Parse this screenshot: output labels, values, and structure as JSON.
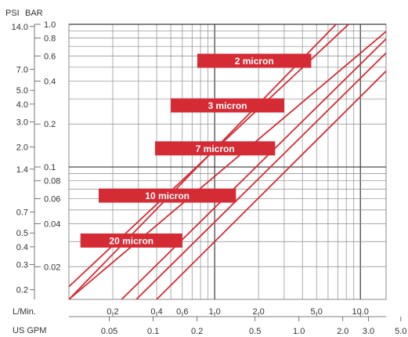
{
  "chart_data": {
    "type": "line",
    "title": "",
    "x_scale": "log",
    "y_scale": "log",
    "x_range_lpm": [
      0.1,
      15.0
    ],
    "y_range_bar": [
      0.0118,
      1.0
    ],
    "grid": true,
    "colors": {
      "series": "#d52b35",
      "label_bg": "#d52b35",
      "label_text": "#ffffff",
      "grid": "#8a8a8a",
      "text": "#333333"
    },
    "units": {
      "psi": "PSI",
      "bar": "BAR",
      "lpm": "L/Min.",
      "gpm": "US GPM"
    },
    "psi_ticks": [
      {
        "label": "14.0",
        "value": 14.0
      },
      {
        "label": "7.0",
        "value": 7.0
      },
      {
        "label": "5.0",
        "value": 5.0
      },
      {
        "label": "4.0",
        "value": 4.0
      },
      {
        "label": "3.0",
        "value": 3.0
      },
      {
        "label": "2.0",
        "value": 2.0
      },
      {
        "label": "1.4",
        "value": 1.4
      },
      {
        "label": "0.7",
        "value": 0.7
      },
      {
        "label": "0.5",
        "value": 0.5
      },
      {
        "label": "0.4",
        "value": 0.4
      },
      {
        "label": "0.3",
        "value": 0.3
      },
      {
        "label": "0.2",
        "value": 0.2
      }
    ],
    "bar_ticks": [
      {
        "label": "1.0",
        "value": 1.0
      },
      {
        "label": "0.8",
        "value": 0.8
      },
      {
        "label": "0.6",
        "value": 0.6
      },
      {
        "label": "0.4",
        "value": 0.4
      },
      {
        "label": "0.2",
        "value": 0.2
      },
      {
        "label": "0.1",
        "value": 0.1
      },
      {
        "label": "0.08",
        "value": 0.08
      },
      {
        "label": "0.06",
        "value": 0.06
      },
      {
        "label": "0.04",
        "value": 0.04
      },
      {
        "label": "0.02",
        "value": 0.02
      }
    ],
    "lpm_ticks": [
      {
        "label": "0.2",
        "value": 0.2
      },
      {
        "label": "0.4",
        "value": 0.4
      },
      {
        "label": "0.6",
        "value": 0.6
      },
      {
        "label": "1.0",
        "value": 1.0
      },
      {
        "label": "2.0",
        "value": 2.0
      },
      {
        "label": "5.0",
        "value": 5.0
      },
      {
        "label": "10.0",
        "value": 10.0
      }
    ],
    "gpm_ticks": [
      {
        "label": "0.05",
        "value": 0.05
      },
      {
        "label": "0.1",
        "value": 0.1
      },
      {
        "label": "0.2",
        "value": 0.2
      },
      {
        "label": "0.5",
        "value": 0.5
      },
      {
        "label": "1.0",
        "value": 1.0
      },
      {
        "label": "2.0",
        "value": 2.0
      },
      {
        "label": "3.0",
        "value": 3.0
      },
      {
        "label": "5.0",
        "value": 5.0
      }
    ],
    "grid_x_lpm": [
      0.2,
      0.3,
      0.4,
      0.5,
      0.6,
      0.7,
      0.8,
      0.9,
      1.0,
      2.0,
      3.0,
      4.0,
      5.0,
      6.0,
      7.0,
      8.0,
      9.0,
      10.0
    ],
    "grid_y_bar": [
      0.02,
      0.03,
      0.04,
      0.05,
      0.06,
      0.07,
      0.08,
      0.09,
      0.1,
      0.2,
      0.3,
      0.4,
      0.5,
      0.6,
      0.7,
      0.8,
      0.9,
      1.0
    ],
    "major_x_lpm": [
      1.0,
      10.0
    ],
    "major_y_bar": [
      0.1,
      1.0
    ],
    "series": [
      {
        "name": "2 micron",
        "lines": [
          {
            "x": [
              0.1,
              8.3
            ],
            "y": [
              0.0145,
              1.0
            ]
          },
          {
            "x": [
              0.1,
              6.8
            ],
            "y": [
              0.0118,
              1.0
            ]
          }
        ]
      },
      {
        "name": "3 micron",
        "lines": [
          {
            "x": [
              0.1,
              15.0
            ],
            "y": [
              0.0118,
              0.89
            ]
          }
        ]
      },
      {
        "name": "7 micron",
        "lines": [
          {
            "x": [
              0.23,
              15.0
            ],
            "y": [
              0.0118,
              0.79
            ]
          }
        ]
      },
      {
        "name": "10 micron",
        "lines": [
          {
            "x": [
              0.29,
              15.0
            ],
            "y": [
              0.0118,
              0.63
            ]
          }
        ]
      },
      {
        "name": "20 micron",
        "lines": [
          {
            "x": [
              0.4,
              15.0
            ],
            "y": [
              0.0118,
              0.47
            ]
          }
        ]
      }
    ],
    "annotations": [
      {
        "text": "2 micron",
        "x_from": 0.76,
        "x_to": 4.6,
        "y": 0.555
      },
      {
        "text": "3 micron",
        "x_from": 0.5,
        "x_to": 3.0,
        "y": 0.27
      },
      {
        "text": "7 micron",
        "x_from": 0.39,
        "x_to": 2.6,
        "y": 0.135
      },
      {
        "text": "10 micron",
        "x_from": 0.16,
        "x_to": 1.4,
        "y": 0.063
      },
      {
        "text": "20 micron",
        "x_from": 0.12,
        "x_to": 0.6,
        "y": 0.0305
      }
    ]
  }
}
